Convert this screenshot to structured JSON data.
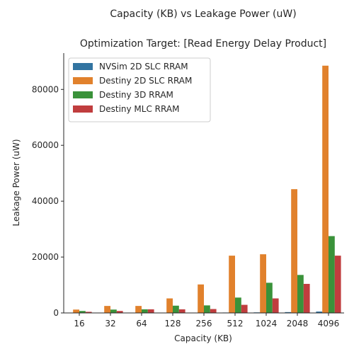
{
  "chart_data": {
    "type": "bar",
    "title": "Capacity (KB) vs Leakage Power (uW)",
    "subtitle": "Optimization Target: [Read Energy Delay Product]",
    "xlabel": "Capacity (KB)",
    "ylabel": "Leakage Power (uW)",
    "categories": [
      "16",
      "32",
      "64",
      "128",
      "256",
      "512",
      "1024",
      "2048",
      "4096"
    ],
    "ylim": [
      0,
      93000
    ],
    "yticks": [
      0,
      20000,
      40000,
      60000,
      80000
    ],
    "legend_position": "top-left",
    "grid": false,
    "series": [
      {
        "name": "NVSim 2D SLC RRAM",
        "color": "#3274a1",
        "values": [
          20,
          30,
          40,
          60,
          80,
          150,
          200,
          300,
          500
        ]
      },
      {
        "name": "Destiny 2D SLC RRAM",
        "color": "#e1812c",
        "values": [
          1200,
          2500,
          2500,
          5200,
          10200,
          20500,
          21000,
          44300,
          88500
        ]
      },
      {
        "name": "Destiny 3D RRAM",
        "color": "#3a923a",
        "values": [
          700,
          1200,
          1300,
          2600,
          2700,
          5500,
          10800,
          13600,
          27500
        ]
      },
      {
        "name": "Destiny MLC RRAM",
        "color": "#c03d3e",
        "values": [
          400,
          700,
          1300,
          1300,
          1400,
          2900,
          5200,
          10400,
          20500
        ]
      }
    ]
  }
}
